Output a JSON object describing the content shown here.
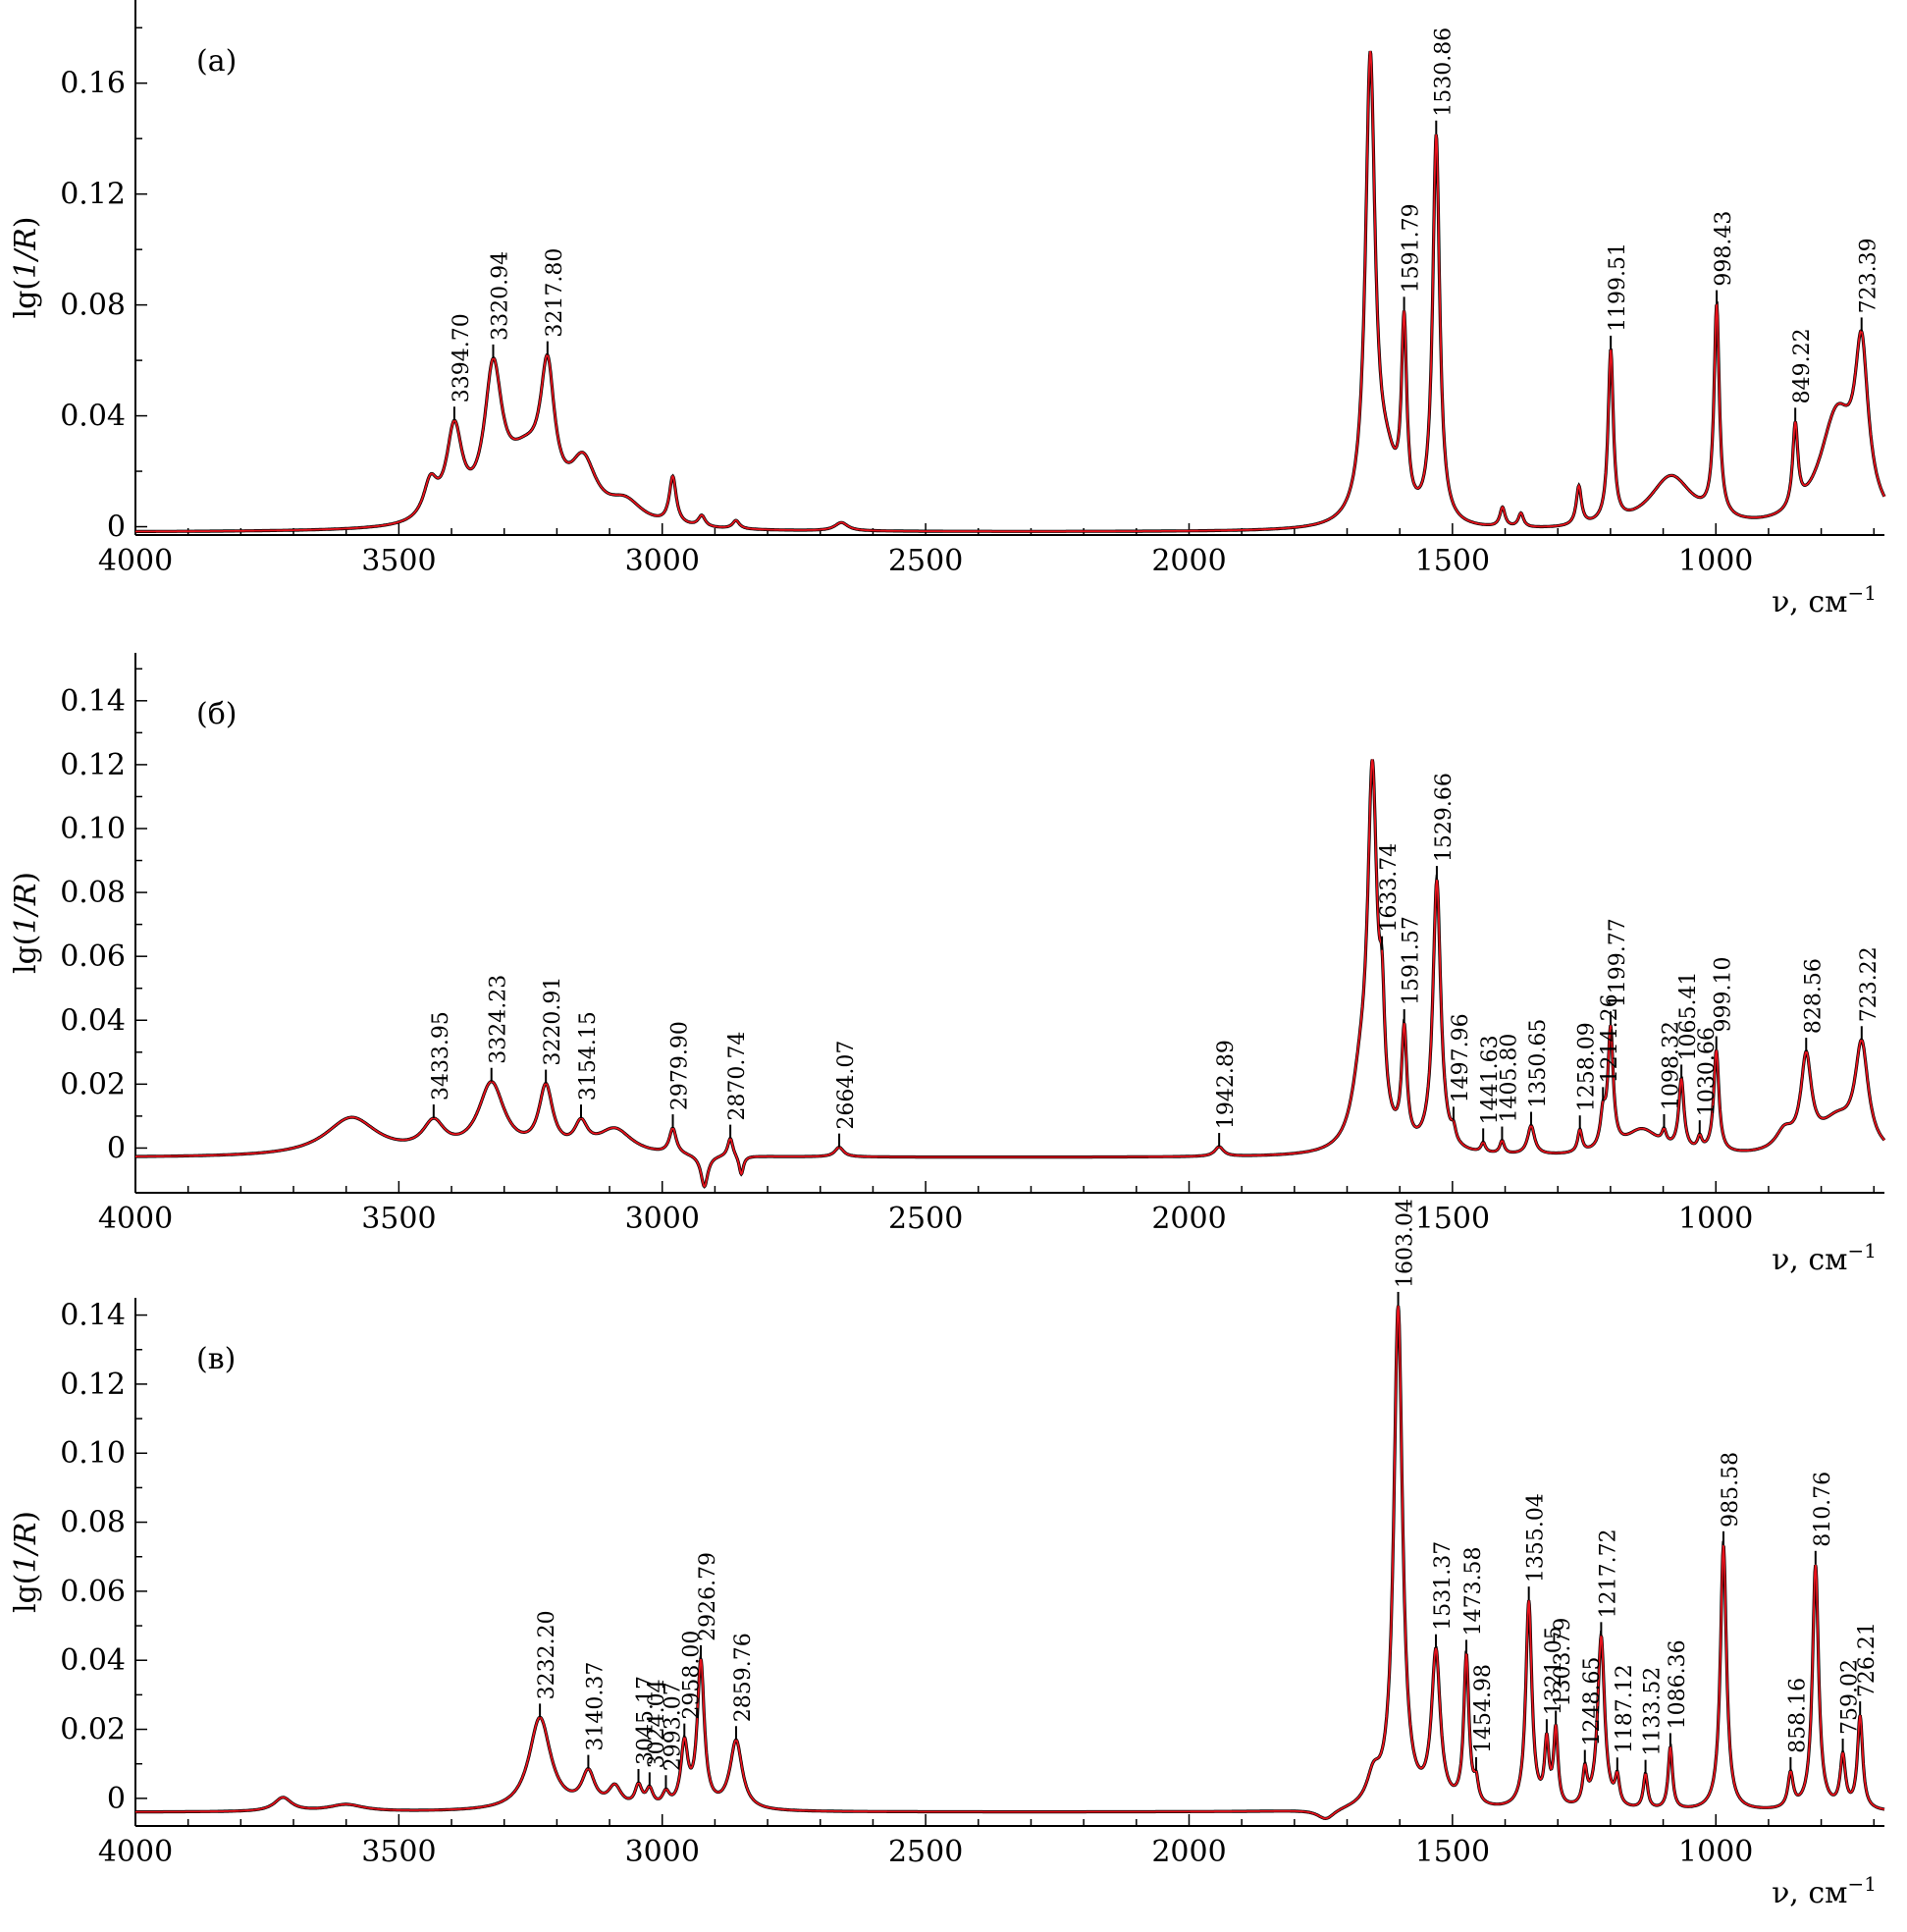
{
  "chart_data": [
    {
      "type": "line",
      "panel_label": "(а)",
      "xlabel": "ν, см",
      "xlabel_sup": "−1",
      "ylabel": "lg(1/R)",
      "xlim": [
        4000,
        680
      ],
      "ylim": [
        -0.003,
        0.19
      ],
      "x_ticks": [
        4000,
        3500,
        3000,
        2500,
        2000,
        1500,
        1000
      ],
      "y_ticks": [
        {
          "value": 0,
          "label": "0"
        },
        {
          "value": 0.04,
          "label": "0.04"
        },
        {
          "value": 0.08,
          "label": "0.08"
        },
        {
          "value": 0.12,
          "label": "0.12"
        },
        {
          "value": 0.16,
          "label": "0.16"
        }
      ],
      "baseline": -0.002,
      "series": [
        {
          "name": "spectrum",
          "colors": [
            "#000000",
            "#e8121c"
          ]
        }
      ],
      "peaks": [
        {
          "x": 3440,
          "y": 0.013,
          "w": 16,
          "label": ""
        },
        {
          "x": 3394.7,
          "y": 0.032,
          "w": 18,
          "label": "3394.70"
        },
        {
          "x": 3320.94,
          "y": 0.05,
          "w": 20,
          "label": "3320.94"
        },
        {
          "x": 3260,
          "y": 0.022,
          "w": 50,
          "label": ""
        },
        {
          "x": 3217.8,
          "y": 0.045,
          "w": 16,
          "label": "3217.80"
        },
        {
          "x": 3150,
          "y": 0.02,
          "w": 30,
          "label": ""
        },
        {
          "x": 3070,
          "y": 0.008,
          "w": 40,
          "label": ""
        },
        {
          "x": 2980,
          "y": 0.017,
          "w": 8,
          "label": ""
        },
        {
          "x": 2925,
          "y": 0.004,
          "w": 8,
          "label": ""
        },
        {
          "x": 2860,
          "y": 0.003,
          "w": 8,
          "label": ""
        },
        {
          "x": 2660,
          "y": 0.003,
          "w": 15,
          "label": ""
        },
        {
          "x": 1656,
          "y": 0.165,
          "w": 11,
          "label": ""
        },
        {
          "x": 1625,
          "y": 0.018,
          "w": 25,
          "label": ""
        },
        {
          "x": 1591.79,
          "y": 0.066,
          "w": 6,
          "label": "1591.79"
        },
        {
          "x": 1530.86,
          "y": 0.14,
          "w": 8,
          "label": "1530.86"
        },
        {
          "x": 1405,
          "y": 0.007,
          "w": 6,
          "label": ""
        },
        {
          "x": 1370,
          "y": 0.005,
          "w": 6,
          "label": ""
        },
        {
          "x": 1260,
          "y": 0.014,
          "w": 6,
          "label": ""
        },
        {
          "x": 1199.51,
          "y": 0.062,
          "w": 6,
          "label": "1199.51"
        },
        {
          "x": 1085,
          "y": 0.019,
          "w": 50,
          "label": ""
        },
        {
          "x": 998.43,
          "y": 0.076,
          "w": 6,
          "label": "998.43"
        },
        {
          "x": 849.22,
          "y": 0.03,
          "w": 6,
          "label": "849.22"
        },
        {
          "x": 770,
          "y": 0.04,
          "w": 40,
          "label": ""
        },
        {
          "x": 723.39,
          "y": 0.055,
          "w": 15,
          "label": "723.39"
        }
      ]
    },
    {
      "type": "line",
      "panel_label": "(б)",
      "xlabel": "ν, см",
      "xlabel_sup": "−1",
      "ylabel": "lg(1/R)",
      "xlim": [
        4000,
        680
      ],
      "ylim": [
        -0.014,
        0.155
      ],
      "x_ticks": [
        4000,
        3500,
        3000,
        2500,
        2000,
        1500,
        1000
      ],
      "y_ticks": [
        {
          "value": 0,
          "label": "0"
        },
        {
          "value": 0.02,
          "label": "0.02"
        },
        {
          "value": 0.04,
          "label": "0.04"
        },
        {
          "value": 0.06,
          "label": "0.06"
        },
        {
          "value": 0.08,
          "label": "0.08"
        },
        {
          "value": 0.1,
          "label": "0.10"
        },
        {
          "value": 0.12,
          "label": "0.12"
        },
        {
          "value": 0.14,
          "label": "0.14"
        }
      ],
      "baseline": -0.003,
      "series": [
        {
          "name": "spectrum",
          "colors": [
            "#000000",
            "#e8121c"
          ]
        }
      ],
      "peaks": [
        {
          "x": 3590,
          "y": 0.012,
          "w": 60,
          "label": ""
        },
        {
          "x": 3433.95,
          "y": 0.009,
          "w": 25,
          "label": "3433.95"
        },
        {
          "x": 3324.23,
          "y": 0.022,
          "w": 30,
          "label": "3324.23"
        },
        {
          "x": 3220.91,
          "y": 0.02,
          "w": 16,
          "label": "3220.91"
        },
        {
          "x": 3154.15,
          "y": 0.008,
          "w": 15,
          "label": "3154.15"
        },
        {
          "x": 3090,
          "y": 0.008,
          "w": 40,
          "label": ""
        },
        {
          "x": 2979.9,
          "y": 0.008,
          "w": 8,
          "label": "2979.90"
        },
        {
          "x": 2920,
          "y": -0.01,
          "w": 8,
          "label": ""
        },
        {
          "x": 2870.74,
          "y": 0.006,
          "w": 6,
          "label": "2870.74"
        },
        {
          "x": 2850,
          "y": -0.006,
          "w": 5,
          "label": ""
        },
        {
          "x": 2664.07,
          "y": 0.003,
          "w": 10,
          "label": "2664.07"
        },
        {
          "x": 1942.89,
          "y": 0.003,
          "w": 10,
          "label": "1942.89"
        },
        {
          "x": 1675,
          "y": 0.018,
          "w": 20,
          "label": ""
        },
        {
          "x": 1652,
          "y": 0.113,
          "w": 11,
          "label": ""
        },
        {
          "x": 1633.74,
          "y": 0.03,
          "w": 6,
          "label": "1633.74"
        },
        {
          "x": 1591.57,
          "y": 0.035,
          "w": 6,
          "label": "1591.57"
        },
        {
          "x": 1529.66,
          "y": 0.085,
          "w": 9,
          "label": "1529.66"
        },
        {
          "x": 1497.96,
          "y": 0.004,
          "w": 5,
          "label": "1497.96"
        },
        {
          "x": 1441.63,
          "y": 0.003,
          "w": 5,
          "label": "1441.63"
        },
        {
          "x": 1405.8,
          "y": 0.004,
          "w": 5,
          "label": "1405.80"
        },
        {
          "x": 1350.65,
          "y": 0.009,
          "w": 8,
          "label": "1350.65"
        },
        {
          "x": 1258.09,
          "y": 0.007,
          "w": 5,
          "label": "1258.09"
        },
        {
          "x": 1214.26,
          "y": 0.01,
          "w": 6,
          "label": "1214.26"
        },
        {
          "x": 1199.77,
          "y": 0.037,
          "w": 6,
          "label": "1199.77"
        },
        {
          "x": 1140,
          "y": 0.008,
          "w": 40,
          "label": ""
        },
        {
          "x": 1098.32,
          "y": 0.004,
          "w": 5,
          "label": "1098.32"
        },
        {
          "x": 1065.41,
          "y": 0.022,
          "w": 6,
          "label": "1065.41"
        },
        {
          "x": 1030.66,
          "y": 0.004,
          "w": 5,
          "label": "1030.66"
        },
        {
          "x": 999.1,
          "y": 0.032,
          "w": 6,
          "label": "999.10"
        },
        {
          "x": 870,
          "y": 0.006,
          "w": 20,
          "label": ""
        },
        {
          "x": 828.56,
          "y": 0.028,
          "w": 12,
          "label": "828.56"
        },
        {
          "x": 770,
          "y": 0.01,
          "w": 40,
          "label": ""
        },
        {
          "x": 723.22,
          "y": 0.032,
          "w": 15,
          "label": "723.22"
        }
      ]
    },
    {
      "type": "line",
      "panel_label": "(в)",
      "xlabel": "ν, см",
      "xlabel_sup": "−1",
      "ylabel": "lg(1/R)",
      "xlim": [
        4000,
        680
      ],
      "ylim": [
        -0.008,
        0.145
      ],
      "x_ticks": [
        4000,
        3500,
        3000,
        2500,
        2000,
        1500,
        1000
      ],
      "y_ticks": [
        {
          "value": 0,
          "label": "0"
        },
        {
          "value": 0.02,
          "label": "0.02"
        },
        {
          "value": 0.04,
          "label": "0.04"
        },
        {
          "value": 0.06,
          "label": "0.06"
        },
        {
          "value": 0.08,
          "label": "0.08"
        },
        {
          "value": 0.1,
          "label": "0.10"
        },
        {
          "value": 0.12,
          "label": "0.12"
        },
        {
          "value": 0.14,
          "label": "0.14"
        }
      ],
      "baseline": -0.004,
      "series": [
        {
          "name": "spectrum",
          "colors": [
            "#000000",
            "#e8121c"
          ]
        }
      ],
      "peaks": [
        {
          "x": 3720,
          "y": 0.004,
          "w": 20,
          "label": ""
        },
        {
          "x": 3600,
          "y": 0.002,
          "w": 40,
          "label": ""
        },
        {
          "x": 3232.2,
          "y": 0.027,
          "w": 25,
          "label": "3232.20"
        },
        {
          "x": 3140.37,
          "y": 0.01,
          "w": 15,
          "label": "3140.37"
        },
        {
          "x": 3090,
          "y": 0.006,
          "w": 15,
          "label": ""
        },
        {
          "x": 3045.17,
          "y": 0.006,
          "w": 8,
          "label": "3045.17"
        },
        {
          "x": 3024.04,
          "y": 0.005,
          "w": 8,
          "label": "3024.04"
        },
        {
          "x": 2993.07,
          "y": 0.004,
          "w": 8,
          "label": "2993.07"
        },
        {
          "x": 2958.0,
          "y": 0.018,
          "w": 8,
          "label": "2958.00"
        },
        {
          "x": 2926.79,
          "y": 0.042,
          "w": 8,
          "label": "2926.79"
        },
        {
          "x": 2859.76,
          "y": 0.02,
          "w": 14,
          "label": "2859.76"
        },
        {
          "x": 1740,
          "y": -0.003,
          "w": 20,
          "label": ""
        },
        {
          "x": 1650,
          "y": 0.008,
          "w": 15,
          "label": ""
        },
        {
          "x": 1603.04,
          "y": 0.145,
          "w": 10,
          "label": "1603.04"
        },
        {
          "x": 1531.37,
          "y": 0.044,
          "w": 10,
          "label": "1531.37"
        },
        {
          "x": 1473.58,
          "y": 0.043,
          "w": 6,
          "label": "1473.58"
        },
        {
          "x": 1454.98,
          "y": 0.006,
          "w": 5,
          "label": "1454.98"
        },
        {
          "x": 1355.04,
          "y": 0.06,
          "w": 7,
          "label": "1355.04"
        },
        {
          "x": 1321.05,
          "y": 0.018,
          "w": 5,
          "label": "1321.05"
        },
        {
          "x": 1303.79,
          "y": 0.022,
          "w": 5,
          "label": "1303.79"
        },
        {
          "x": 1248.65,
          "y": 0.01,
          "w": 5,
          "label": "1248.65"
        },
        {
          "x": 1217.72,
          "y": 0.05,
          "w": 8,
          "label": "1217.72"
        },
        {
          "x": 1187.12,
          "y": 0.008,
          "w": 5,
          "label": "1187.12"
        },
        {
          "x": 1133.52,
          "y": 0.01,
          "w": 5,
          "label": "1133.52"
        },
        {
          "x": 1086.36,
          "y": 0.018,
          "w": 5,
          "label": "1086.36"
        },
        {
          "x": 985.58,
          "y": 0.077,
          "w": 7,
          "label": "985.58"
        },
        {
          "x": 858.16,
          "y": 0.01,
          "w": 6,
          "label": "858.16"
        },
        {
          "x": 810.76,
          "y": 0.071,
          "w": 7,
          "label": "810.76"
        },
        {
          "x": 759.02,
          "y": 0.015,
          "w": 6,
          "label": "759.02"
        },
        {
          "x": 726.21,
          "y": 0.027,
          "w": 6,
          "label": "726.21"
        }
      ]
    }
  ]
}
